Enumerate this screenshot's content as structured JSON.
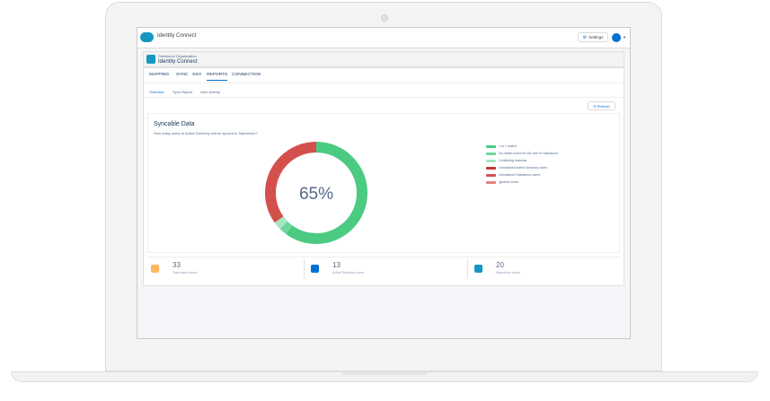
{
  "header": {
    "app_title": "Identity Connect",
    "settings_label": "Settings"
  },
  "org": {
    "subtitle": "Salesforce Organization",
    "title": "Identity Connect"
  },
  "tabs": [
    "MAPPING",
    "SYNC",
    "SSO",
    "REPORTS",
    "CONNECTION"
  ],
  "active_tab": "REPORTS",
  "subtabs": [
    "Overview",
    "Sync Report",
    "User Activity"
  ],
  "active_subtab": "Overview",
  "refresh_label": "Refresh",
  "panel": {
    "title": "Syncable Data",
    "subtitle": "How many users in Active Directory will be synced to Salesforce?"
  },
  "chart_data": {
    "type": "pie",
    "center_label": "65%",
    "slices": [
      {
        "label": "1 to 1 match",
        "value": 60,
        "color": "#4bca81"
      },
      {
        "label": "No match found for AD user in Salesforce",
        "value": 2.5,
        "color": "#6fd69d"
      },
      {
        "label": "Conflicting matches",
        "value": 2.5,
        "color": "#a6e7c1"
      },
      {
        "label": "Unmatched Active Directory users",
        "value": 0,
        "color": "#c23934"
      },
      {
        "label": "Unmatched Salesforce users",
        "value": 35,
        "color": "#d4504c"
      },
      {
        "label": "Ignored users",
        "value": 0,
        "color": "#e28280"
      }
    ]
  },
  "stats": [
    {
      "value": "33",
      "label": "Total users found",
      "color": "#ffb75d"
    },
    {
      "value": "13",
      "label": "Active Directory users",
      "color": "#0070d2"
    },
    {
      "value": "20",
      "label": "Salesforce users",
      "color": "#1798c1"
    }
  ]
}
